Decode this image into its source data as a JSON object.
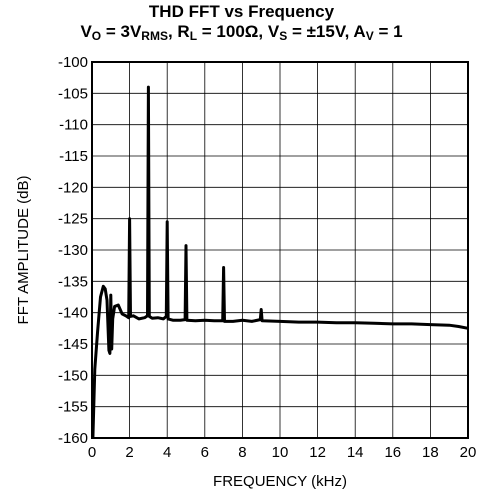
{
  "chart_data": {
    "type": "line",
    "title": "THD FFT vs Frequency",
    "subtitle_parts": {
      "vo": "V",
      "vo_sub": "O",
      "vo_eq": " = 3V",
      "vo_unit_sub": "RMS",
      "rl": ", R",
      "rl_sub": "L",
      "rl_eq": " = 100Ω, V",
      "vs_sub": "S",
      "vs_eq": " = ±15V, A",
      "av_sub": "V",
      "av_eq": " = 1"
    },
    "xlabel": "FREQUENCY (kHz)",
    "ylabel": "FFT AMPLITUDE (dB)",
    "xlim": [
      0,
      20
    ],
    "ylim": [
      -160,
      -100
    ],
    "grid": true,
    "x_ticks": [
      "0",
      "2",
      "4",
      "6",
      "8",
      "10",
      "12",
      "14",
      "16",
      "18",
      "20"
    ],
    "y_ticks": [
      "-100",
      "-105",
      "-110",
      "-115",
      "-120",
      "-125",
      "-130",
      "-135",
      "-140",
      "-145",
      "-150",
      "-155",
      "-160"
    ],
    "series": [
      {
        "x": [
          0.05,
          0.15,
          0.3,
          0.45,
          0.6,
          0.7,
          0.8,
          0.9,
          0.95,
          1.0,
          1.05,
          1.1,
          1.2,
          1.4,
          1.6,
          1.8,
          1.95,
          2.0,
          2.05,
          2.2,
          2.5,
          2.8,
          2.95,
          3.0,
          3.05,
          3.2,
          3.5,
          3.8,
          3.95,
          4.0,
          4.05,
          4.3,
          4.7,
          4.95,
          5.0,
          5.05,
          5.5,
          6.0,
          6.5,
          6.95,
          7.0,
          7.05,
          7.5,
          8.0,
          8.5,
          8.95,
          9.0,
          9.05,
          10.0,
          11.0,
          12.0,
          13.0,
          14.0,
          15.0,
          16.0,
          17.0,
          18.0,
          19.0,
          19.5,
          20.0
        ],
        "y": [
          -160,
          -149,
          -143,
          -137.5,
          -135.8,
          -136.2,
          -138,
          -146,
          -146.5,
          -137.2,
          -145.8,
          -141,
          -139,
          -138.8,
          -140.2,
          -140.5,
          -140.8,
          -125,
          -140.6,
          -140.5,
          -141,
          -140.8,
          -140.5,
          -104,
          -140.6,
          -140.9,
          -140.8,
          -141,
          -140.6,
          -125.5,
          -141,
          -141.2,
          -141.2,
          -141.1,
          -129.3,
          -141.2,
          -141.3,
          -141.2,
          -141.3,
          -141.3,
          -132.8,
          -141.4,
          -141.4,
          -141.2,
          -141.4,
          -141.1,
          -139.5,
          -141.3,
          -141.4,
          -141.5,
          -141.5,
          -141.6,
          -141.6,
          -141.7,
          -141.8,
          -141.8,
          -141.9,
          -142.0,
          -142.2,
          -142.5
        ]
      }
    ]
  }
}
